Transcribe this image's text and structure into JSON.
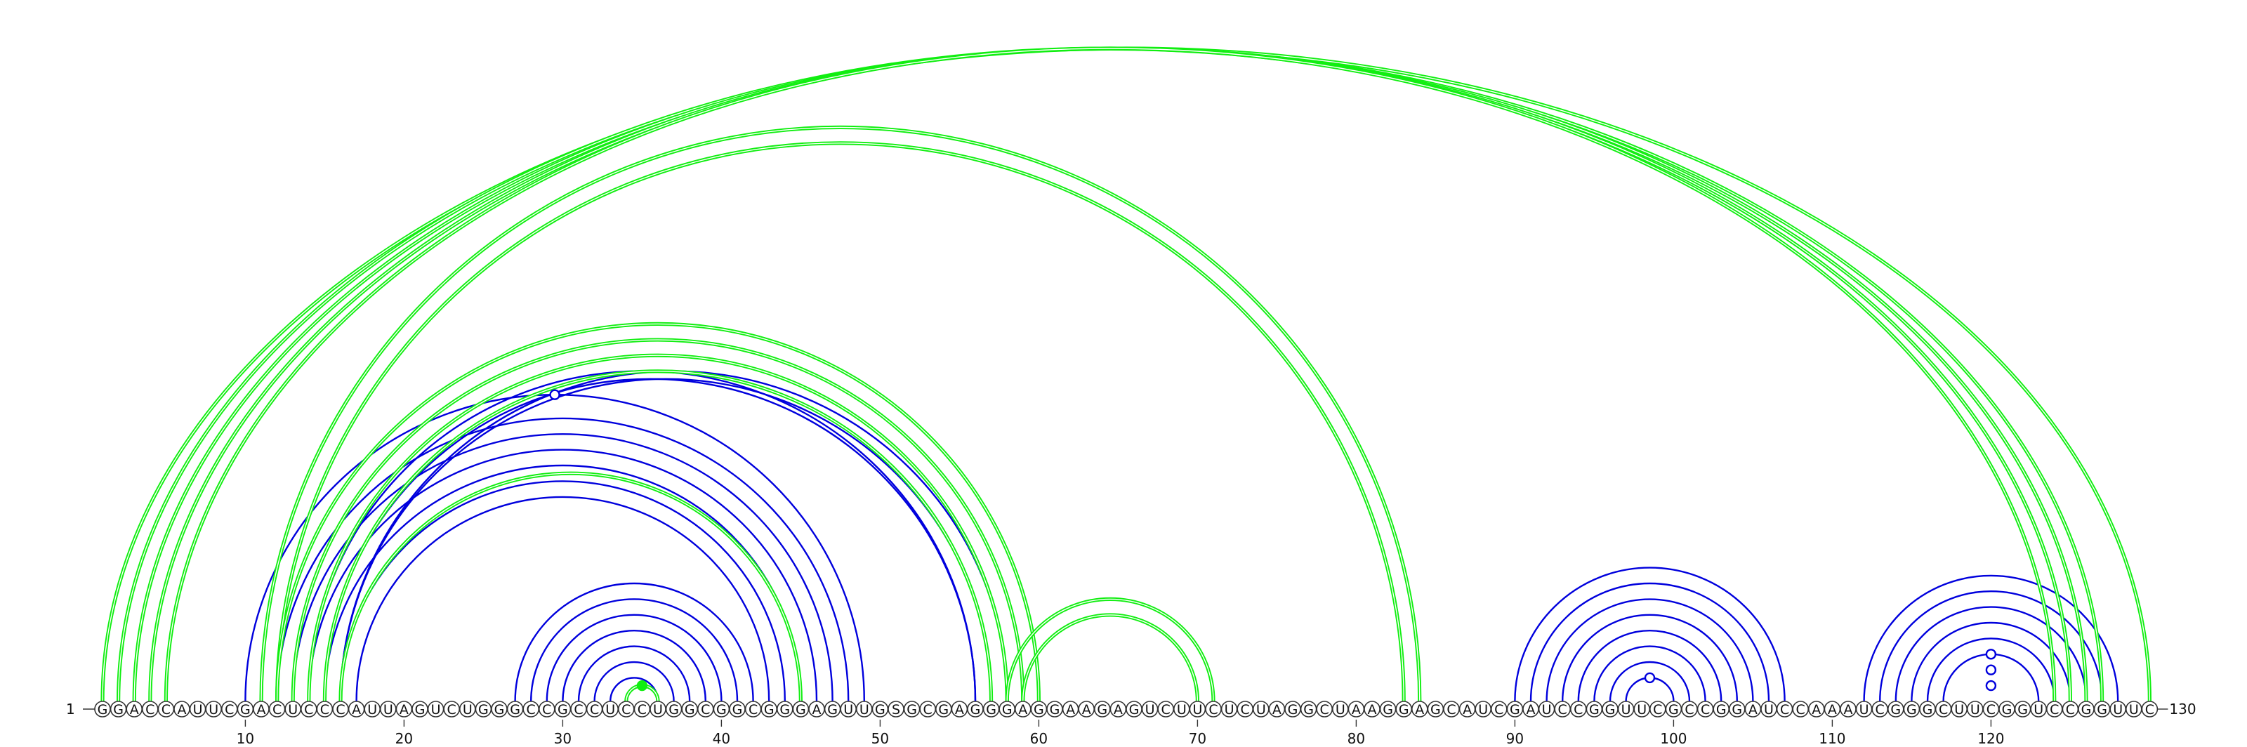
{
  "sequence": "GGACCAUUCGACUCCCAUUAGUCUGGGCCGCCUCCUGGCGGCGGGAGUUGSGCGAGGGAGGAAGAGUCUUCUCUAGGCUAAGGAGCAUCGAUCCGGUUCGCCGGAUCCAAAUCGGGCUUCGGUCCGGUUC",
  "start_label": "1",
  "end_label": "130",
  "tick_labels": [
    "10",
    "20",
    "30",
    "40",
    "50",
    "60",
    "70",
    "80",
    "90",
    "100",
    "110",
    "120"
  ],
  "colors": {
    "blue": "#0000dd",
    "green": "#11ee11"
  },
  "chart_data": {
    "type": "arc",
    "length": 130,
    "ticks": [
      10,
      20,
      30,
      40,
      50,
      60,
      70,
      80,
      90,
      100,
      110,
      120
    ],
    "blue_pairs": [
      [
        10,
        49
      ],
      [
        12,
        48
      ],
      [
        13,
        47
      ],
      [
        14,
        46
      ],
      [
        15,
        45
      ],
      [
        16,
        44
      ],
      [
        17,
        43
      ],
      [
        14,
        56
      ],
      [
        15,
        56
      ],
      [
        16,
        57
      ],
      [
        16,
        58
      ],
      [
        27,
        42
      ],
      [
        28,
        41
      ],
      [
        29,
        40
      ],
      [
        30,
        39
      ],
      [
        31,
        38
      ],
      [
        32,
        37
      ],
      [
        33,
        36
      ],
      [
        90,
        107
      ],
      [
        91,
        106
      ],
      [
        92,
        105
      ],
      [
        93,
        104
      ],
      [
        94,
        103
      ],
      [
        95,
        102
      ],
      [
        96,
        101
      ],
      [
        97,
        100
      ],
      [
        112,
        128
      ],
      [
        113,
        127
      ],
      [
        114,
        126
      ],
      [
        115,
        125
      ],
      [
        116,
        124
      ],
      [
        117,
        123
      ]
    ],
    "green_pairs": [
      [
        1,
        130
      ],
      [
        2,
        127
      ],
      [
        3,
        126
      ],
      [
        4,
        125
      ],
      [
        5,
        124
      ],
      [
        11,
        84
      ],
      [
        12,
        83
      ],
      [
        12,
        60
      ],
      [
        13,
        59
      ],
      [
        14,
        58
      ],
      [
        15,
        57
      ],
      [
        16,
        45
      ],
      [
        58,
        71
      ],
      [
        59,
        70
      ],
      [
        34,
        36
      ]
    ],
    "markers": [
      {
        "pair": [
          10,
          49
        ],
        "color": "blue"
      },
      {
        "pair": [
          117,
          123
        ],
        "color": "blue"
      },
      {
        "pair": [
          118,
          122
        ],
        "color": "blue"
      },
      {
        "pair": [
          119,
          121
        ],
        "color": "blue"
      },
      {
        "pair": [
          97,
          100
        ],
        "color": "blue"
      },
      {
        "pair": [
          34,
          36
        ],
        "color": "green"
      }
    ]
  }
}
